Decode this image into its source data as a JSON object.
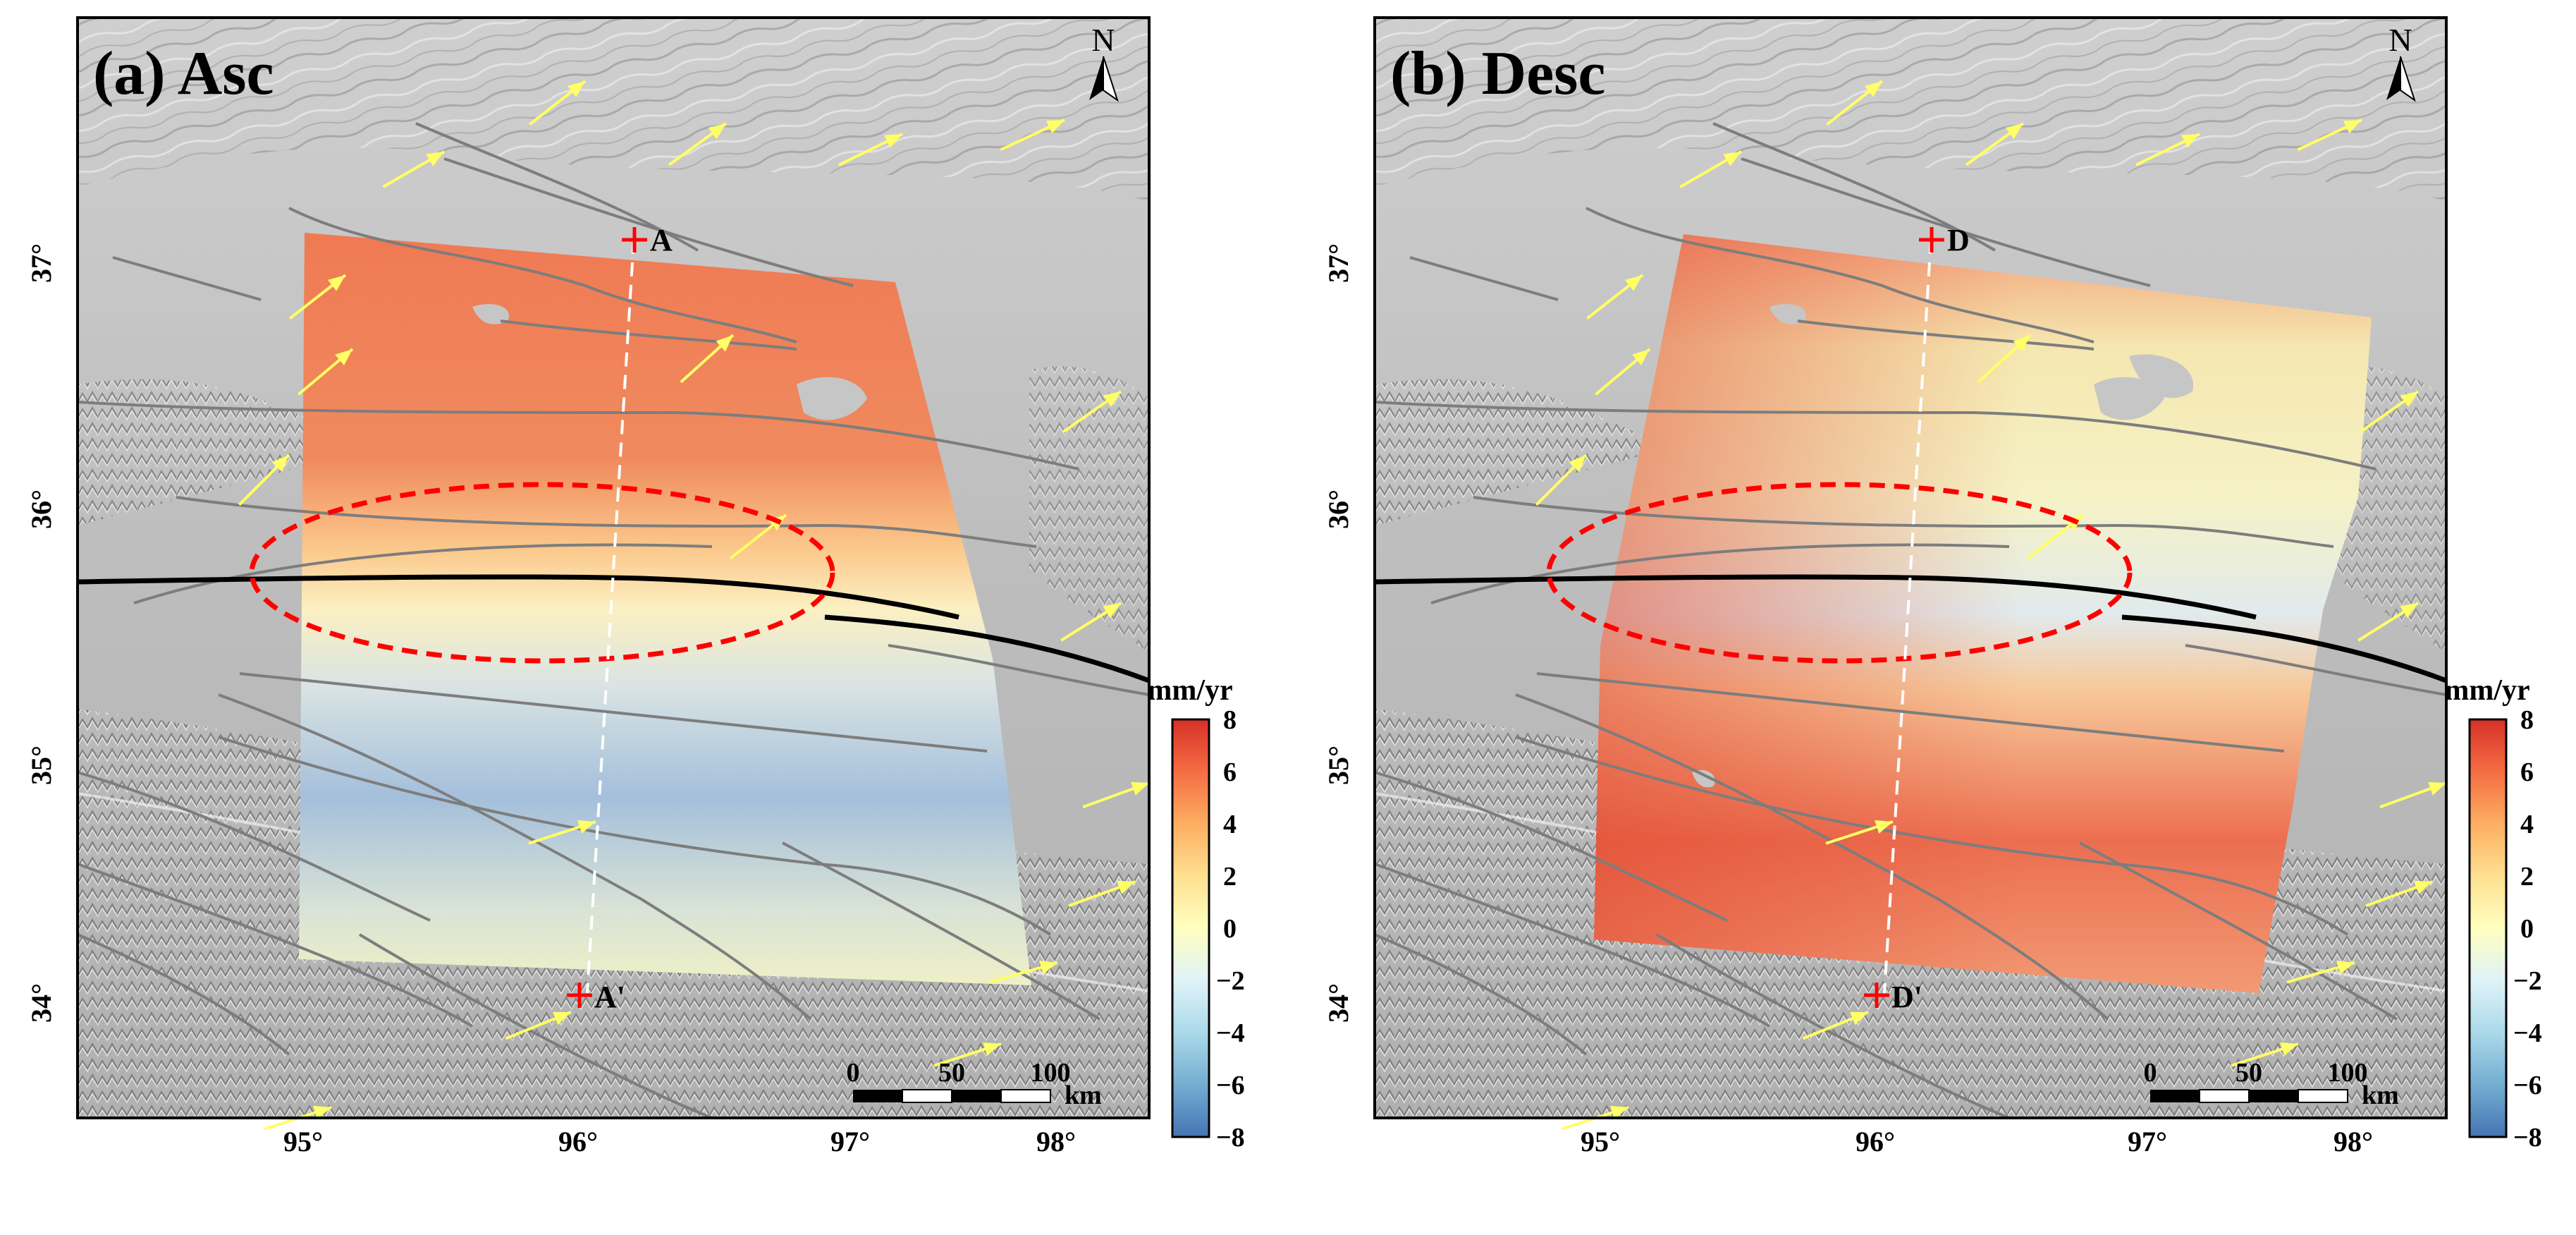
{
  "panels": [
    {
      "id": "asc",
      "title": "(a) Asc",
      "profile_start_label": "A",
      "profile_end_label": "A'",
      "colorbar_unit": "mm/yr",
      "colorbar_ticks": [
        "8",
        "6",
        "4",
        "2",
        "0",
        "−2",
        "−4",
        "−6",
        "−8"
      ],
      "lat_ticks": [
        "37°",
        "36°",
        "35°",
        "34°"
      ],
      "lon_ticks": [
        "95°",
        "96°",
        "97°",
        "98°"
      ],
      "scalebar_labels": [
        "0",
        "50",
        "100"
      ],
      "scalebar_unit": "km",
      "north_label": "N"
    },
    {
      "id": "desc",
      "title": "(b) Desc",
      "profile_start_label": "D",
      "profile_end_label": "D'",
      "colorbar_unit": "mm/yr",
      "colorbar_ticks": [
        "8",
        "6",
        "4",
        "2",
        "0",
        "−2",
        "−4",
        "−6",
        "−8"
      ],
      "lat_ticks": [
        "37°",
        "36°",
        "35°",
        "34°"
      ],
      "lon_ticks": [
        "95°",
        "96°",
        "97°",
        "98°"
      ],
      "scalebar_labels": [
        "0",
        "50",
        "100"
      ],
      "scalebar_unit": "km",
      "north_label": "N"
    }
  ],
  "colors": {
    "colorbar": [
      "#d73027",
      "#f46d43",
      "#fdae61",
      "#fee090",
      "#ffffbf",
      "#e0f3f8",
      "#abd9e9",
      "#74add1",
      "#4575b4"
    ],
    "gps_vector": "#ffff66",
    "profile_marker": "#ff0000",
    "focus_outline": "#ff0000",
    "main_fault": "#000000",
    "secondary_fault": "#808080"
  }
}
